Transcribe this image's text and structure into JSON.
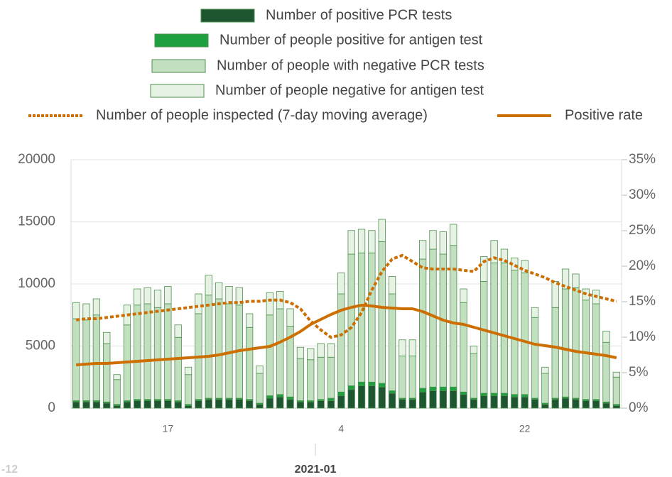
{
  "chart_data": {
    "type": "bar",
    "categories": [
      null,
      null,
      null,
      null,
      null,
      null,
      null,
      null,
      null,
      "17",
      null,
      null,
      null,
      null,
      null,
      null,
      null,
      null,
      null,
      null,
      null,
      null,
      null,
      null,
      null,
      null,
      "4",
      null,
      null,
      null,
      null,
      null,
      null,
      null,
      null,
      null,
      null,
      null,
      null,
      null,
      null,
      null,
      null,
      null,
      "22",
      null,
      null,
      null,
      null,
      null,
      null,
      null,
      null,
      null
    ],
    "period_labels": [
      "-12",
      "2021-01"
    ],
    "ylim": [
      0,
      20000
    ],
    "yticks": [
      0,
      5000,
      10000,
      15000,
      20000
    ],
    "y2lim": [
      0,
      35
    ],
    "y2ticks": [
      {
        "value": 0,
        "label": "0%"
      },
      {
        "value": 5,
        "label": "5%"
      },
      {
        "value": 10,
        "label": "10%"
      },
      {
        "value": 15,
        "label": "15%"
      },
      {
        "value": 20,
        "label": "20%"
      },
      {
        "value": 25,
        "label": "25%"
      },
      {
        "value": 30,
        "label": "30%"
      },
      {
        "value": 35,
        "label": "35%"
      }
    ],
    "grid": true,
    "series": [
      {
        "name": "Number of positive PCR tests",
        "type": "bar",
        "color": "#1e5631",
        "values": [
          500,
          500,
          500,
          400,
          200,
          500,
          600,
          600,
          600,
          600,
          500,
          200,
          600,
          700,
          700,
          700,
          700,
          600,
          300,
          800,
          900,
          700,
          500,
          500,
          600,
          600,
          1000,
          1500,
          1800,
          1800,
          1700,
          1200,
          700,
          700,
          1300,
          1400,
          1400,
          1400,
          1100,
          700,
          1000,
          1000,
          1000,
          900,
          900,
          700,
          300,
          700,
          800,
          700,
          600,
          600,
          400,
          200
        ]
      },
      {
        "name": "Number of people positive for antigen test",
        "type": "bar",
        "color": "#1fa040",
        "values": [
          100,
          100,
          100,
          100,
          100,
          100,
          100,
          100,
          100,
          100,
          100,
          100,
          100,
          100,
          100,
          100,
          100,
          100,
          100,
          200,
          200,
          200,
          100,
          100,
          100,
          200,
          300,
          300,
          300,
          300,
          300,
          200,
          100,
          100,
          300,
          300,
          300,
          300,
          200,
          100,
          200,
          200,
          200,
          200,
          200,
          100,
          100,
          100,
          100,
          100,
          100,
          100,
          100,
          100
        ]
      },
      {
        "name": "Number of people with negative PCR tests",
        "type": "bar",
        "color": "#c2e0c0",
        "values": [
          6600,
          6500,
          6900,
          4700,
          2000,
          6100,
          7600,
          7700,
          7400,
          7700,
          5100,
          2400,
          6900,
          8300,
          8000,
          7600,
          7500,
          5800,
          2400,
          6500,
          6900,
          5700,
          3400,
          3300,
          3400,
          3300,
          7900,
          10600,
          10400,
          10400,
          11400,
          7800,
          3400,
          3400,
          10400,
          11100,
          10700,
          11400,
          7200,
          3600,
          9000,
          10500,
          10500,
          10000,
          9800,
          6500,
          2400,
          7300,
          8700,
          8900,
          8000,
          7700,
          4800,
          2200
        ]
      },
      {
        "name": "Number of people negative for antigen test",
        "type": "bar",
        "color": "#e6f3e4",
        "values": [
          1300,
          1300,
          1300,
          900,
          400,
          1600,
          1300,
          1300,
          1400,
          1400,
          1000,
          600,
          1600,
          1600,
          1300,
          1400,
          1400,
          1100,
          600,
          1800,
          1400,
          1400,
          900,
          900,
          1100,
          1100,
          1700,
          1900,
          1900,
          1800,
          1800,
          1400,
          1300,
          1300,
          1500,
          1500,
          1800,
          1700,
          1100,
          600,
          2000,
          1800,
          1100,
          1000,
          1000,
          800,
          500,
          2100,
          1600,
          1100,
          900,
          1100,
          900,
          400
        ]
      },
      {
        "name": "Number of people inspected (7-day moving average)",
        "type": "line",
        "style": "dotted",
        "color": "#cc6e00",
        "values": [
          7100,
          7200,
          7200,
          7300,
          7400,
          7500,
          7600,
          7700,
          7800,
          7900,
          8000,
          8100,
          8200,
          8300,
          8400,
          8500,
          8500,
          8600,
          8600,
          8700,
          8700,
          8500,
          8000,
          7000,
          6300,
          5700,
          5900,
          6500,
          7700,
          9500,
          11000,
          12000,
          12300,
          11800,
          11300,
          11200,
          11200,
          11200,
          11100,
          11000,
          11800,
          12100,
          11900,
          11500,
          11100,
          10800,
          10500,
          10100,
          9800,
          9500,
          9200,
          9000,
          8800,
          8600
        ]
      },
      {
        "name": "Positive rate",
        "type": "line",
        "style": "solid",
        "axis": "y2",
        "color": "#cc6e00",
        "values": [
          6.1,
          6.2,
          6.3,
          6.3,
          6.4,
          6.5,
          6.6,
          6.7,
          6.8,
          6.9,
          7.0,
          7.1,
          7.2,
          7.3,
          7.5,
          7.8,
          8.1,
          8.3,
          8.5,
          8.7,
          9.3,
          10.0,
          10.8,
          11.8,
          12.5,
          13.2,
          13.8,
          14.2,
          14.5,
          14.4,
          14.2,
          14.1,
          14.0,
          14.0,
          13.6,
          13.0,
          12.4,
          12.0,
          11.8,
          11.4,
          11.0,
          10.6,
          10.2,
          9.8,
          9.4,
          9.0,
          8.8,
          8.6,
          8.3,
          8.0,
          7.8,
          7.6,
          7.4,
          7.1
        ]
      }
    ]
  }
}
